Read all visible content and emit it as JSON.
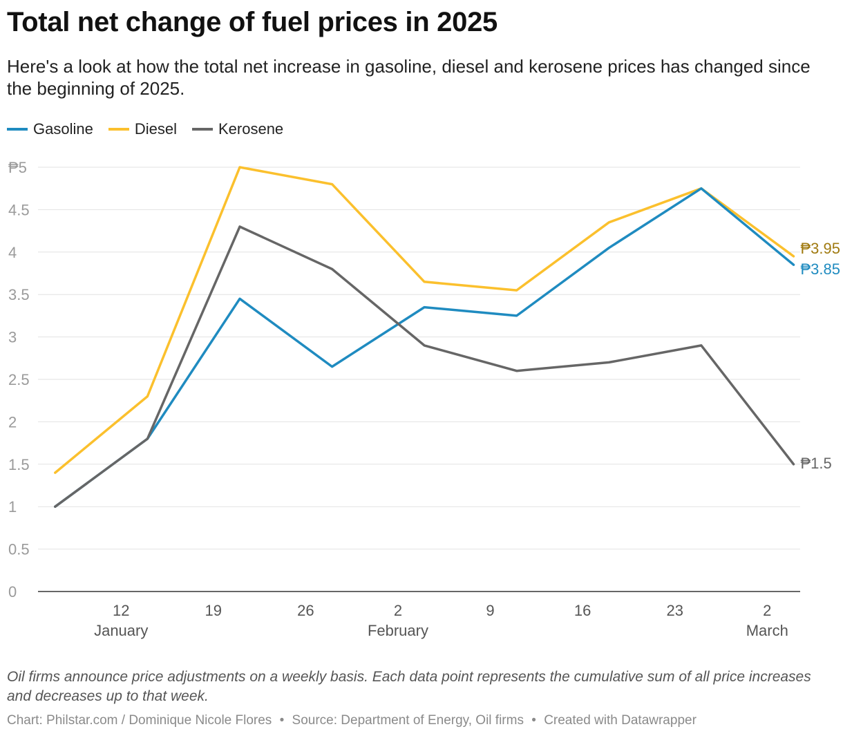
{
  "header": {
    "title": "Total net change of fuel prices in 2025",
    "subtitle": "Here's a look at how the total net increase in gasoline, diesel and kerosene prices has changed since the beginning of 2025."
  },
  "legend": [
    {
      "name": "Gasoline",
      "color": "#1f8bc0"
    },
    {
      "name": "Diesel",
      "color": "#fbc02d"
    },
    {
      "name": "Kerosene",
      "color": "#666666"
    }
  ],
  "chart_data": {
    "type": "line",
    "x": [
      "2025-01-07",
      "2025-01-14",
      "2025-01-21",
      "2025-01-28",
      "2025-02-04",
      "2025-02-11",
      "2025-02-18",
      "2025-02-25",
      "2025-03-04"
    ],
    "series": [
      {
        "name": "Gasoline",
        "color": "#1f8bc0",
        "label_color": "#1f8bc0",
        "end_label": "₱3.85",
        "values": [
          1.0,
          1.8,
          3.45,
          2.65,
          3.35,
          3.25,
          4.05,
          4.75,
          3.85
        ]
      },
      {
        "name": "Diesel",
        "color": "#fbc02d",
        "label_color": "#a07a10",
        "end_label": "₱3.95",
        "values": [
          1.4,
          2.3,
          5.0,
          4.8,
          3.65,
          3.55,
          4.35,
          4.75,
          3.95
        ]
      },
      {
        "name": "Kerosene",
        "color": "#666666",
        "label_color": "#666666",
        "end_label": "₱1.5",
        "values": [
          1.0,
          1.8,
          4.3,
          3.8,
          2.9,
          2.6,
          2.7,
          2.9,
          1.5
        ]
      }
    ],
    "ylim": [
      0,
      5
    ],
    "y_ticks": [
      {
        "value": 0,
        "label": "0"
      },
      {
        "value": 0.5,
        "label": "0.5"
      },
      {
        "value": 1,
        "label": "1"
      },
      {
        "value": 1.5,
        "label": "1.5"
      },
      {
        "value": 2,
        "label": "2"
      },
      {
        "value": 2.5,
        "label": "2.5"
      },
      {
        "value": 3,
        "label": "3"
      },
      {
        "value": 3.5,
        "label": "3.5"
      },
      {
        "value": 4,
        "label": "4"
      },
      {
        "value": 4.5,
        "label": "4.5"
      },
      {
        "value": 5,
        "label": "₱5"
      }
    ],
    "x_ticks": [
      {
        "date": "2025-01-12",
        "label": "12",
        "month": "January"
      },
      {
        "date": "2025-01-19",
        "label": "19",
        "month": ""
      },
      {
        "date": "2025-01-26",
        "label": "26",
        "month": ""
      },
      {
        "date": "2025-02-02",
        "label": "2",
        "month": "February"
      },
      {
        "date": "2025-02-09",
        "label": "9",
        "month": ""
      },
      {
        "date": "2025-02-16",
        "label": "16",
        "month": ""
      },
      {
        "date": "2025-02-23",
        "label": "23",
        "month": ""
      },
      {
        "date": "2025-03-02",
        "label": "2",
        "month": "March"
      }
    ],
    "grid": true
  },
  "notes": {
    "text": "Oil firms announce price adjustments on a weekly basis. Each data point represents the cumulative sum of all price increases and decreases up to that week."
  },
  "footer": {
    "chart_credit": "Chart: Philstar.com / Dominique Nicole Flores",
    "source": "Source: Department of Energy, Oil firms",
    "created_with": "Created with Datawrapper",
    "separator": "•"
  }
}
